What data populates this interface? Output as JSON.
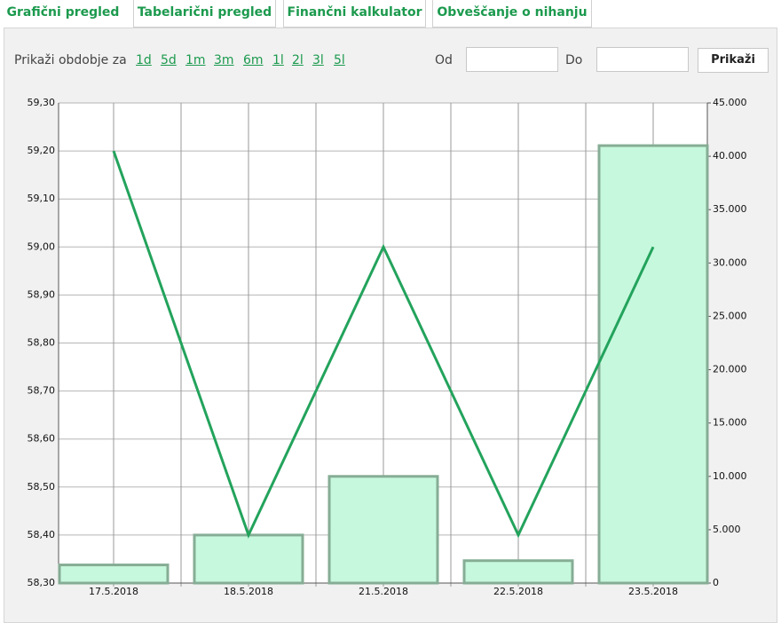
{
  "tabs": [
    "Grafični pregled",
    "Tabelarični pregled",
    "Finančni kalkulator",
    "Obveščanje o nihanju"
  ],
  "period": {
    "label": "Prikaži obdobje za",
    "options": [
      "1d",
      "5d",
      "1m",
      "3m",
      "6m",
      "1l",
      "2l",
      "3l",
      "5l"
    ]
  },
  "from_label": "Od",
  "to_label": "Do",
  "button": "Prikaži",
  "chart_data": {
    "type": "combo",
    "categories": [
      "17.5.2018",
      "18.5.2018",
      "21.5.2018",
      "22.5.2018",
      "23.5.2018"
    ],
    "line": {
      "color": "#23a35c",
      "values": [
        59.2,
        58.4,
        59.0,
        58.4,
        59.0
      ]
    },
    "bars": {
      "color": "#c6f8dd",
      "values": [
        1700,
        4500,
        10000,
        2100,
        41000
      ],
      "axis": "y2"
    },
    "ylim": [
      58.3,
      59.3
    ],
    "yticks": [
      {
        "value": 58.3,
        "label": "58,30"
      },
      {
        "value": 58.4,
        "label": "58,40"
      },
      {
        "value": 58.5,
        "label": "58,50"
      },
      {
        "value": 58.6,
        "label": "58,60"
      },
      {
        "value": 58.7,
        "label": "58,70"
      },
      {
        "value": 58.8,
        "label": "58,80"
      },
      {
        "value": 58.9,
        "label": "58,90"
      },
      {
        "value": 59.0,
        "label": "59,00"
      },
      {
        "value": 59.1,
        "label": "59,10"
      },
      {
        "value": 59.2,
        "label": "59,20"
      },
      {
        "value": 59.3,
        "label": "59,30"
      }
    ],
    "y2lim": [
      0,
      45000
    ],
    "y2ticks": [
      0,
      {
        "value": 5000,
        "label": "5.000"
      },
      {
        "value": 10000,
        "label": "10.000"
      },
      {
        "value": 15000,
        "label": "15.000"
      },
      {
        "value": 20000,
        "label": "20.000"
      },
      {
        "value": 25000,
        "label": "25.000"
      },
      {
        "value": 30000,
        "label": "30.000"
      },
      {
        "value": 35000,
        "label": "35.000"
      },
      {
        "value": 40000,
        "label": "40.000"
      },
      {
        "value": 45000,
        "label": "45.000"
      }
    ],
    "grid": true
  }
}
